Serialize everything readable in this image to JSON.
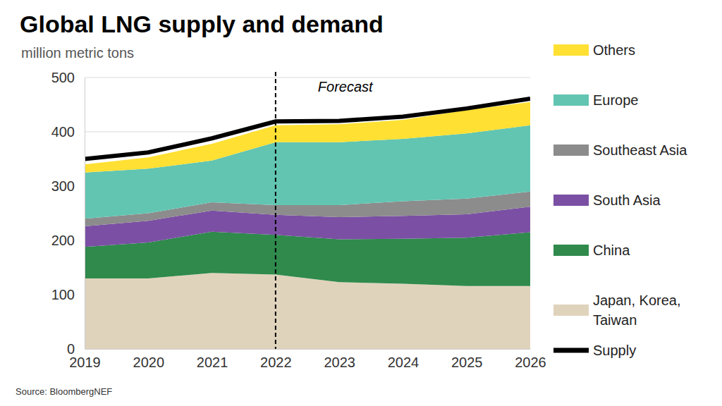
{
  "chart_data": {
    "type": "area",
    "title": "Global LNG supply and demand",
    "subtitle": "million metric tons",
    "source": "Source: BloombergNEF",
    "stacked": true,
    "grid": true,
    "legend": "right",
    "x": [
      2019,
      2020,
      2021,
      2022,
      2023,
      2024,
      2025,
      2026
    ],
    "xlim": [
      2019,
      2026
    ],
    "xticks": [
      2019,
      2020,
      2021,
      2022,
      2023,
      2024,
      2025,
      2026
    ],
    "ylim": [
      0,
      500
    ],
    "yticks": [
      0,
      100,
      200,
      300,
      400,
      500
    ],
    "annotations": [
      {
        "text": "Forecast",
        "x": 2022
      }
    ],
    "series": [
      {
        "name": "Japan, Korea, Taiwan",
        "type": "area",
        "color": "#e0d3bc",
        "values": [
          130,
          130,
          140,
          137,
          123,
          120,
          116,
          116
        ]
      },
      {
        "name": "China",
        "type": "area",
        "color": "#2f8a4c",
        "values": [
          58,
          66,
          76,
          73,
          79,
          83,
          89,
          99
        ]
      },
      {
        "name": "South Asia",
        "type": "area",
        "color": "#7b50a4",
        "values": [
          38,
          40,
          39,
          37,
          41,
          42,
          43,
          47
        ]
      },
      {
        "name": "Southeast Asia",
        "type": "area",
        "color": "#8c8c8c",
        "values": [
          14,
          14,
          15,
          18,
          22,
          27,
          29,
          28
        ]
      },
      {
        "name": "Europe",
        "type": "area",
        "color": "#62c5b2",
        "values": [
          85,
          82,
          77,
          116,
          116,
          115,
          120,
          122
        ]
      },
      {
        "name": "Others",
        "type": "area",
        "color": "#ffe033",
        "values": [
          15,
          21,
          31,
          31,
          33,
          35,
          43,
          43
        ]
      },
      {
        "name": "Supply",
        "type": "line",
        "color": "#000000",
        "line_style": "solid",
        "values": [
          350,
          362,
          388,
          419,
          420,
          428,
          443,
          461
        ]
      }
    ]
  }
}
